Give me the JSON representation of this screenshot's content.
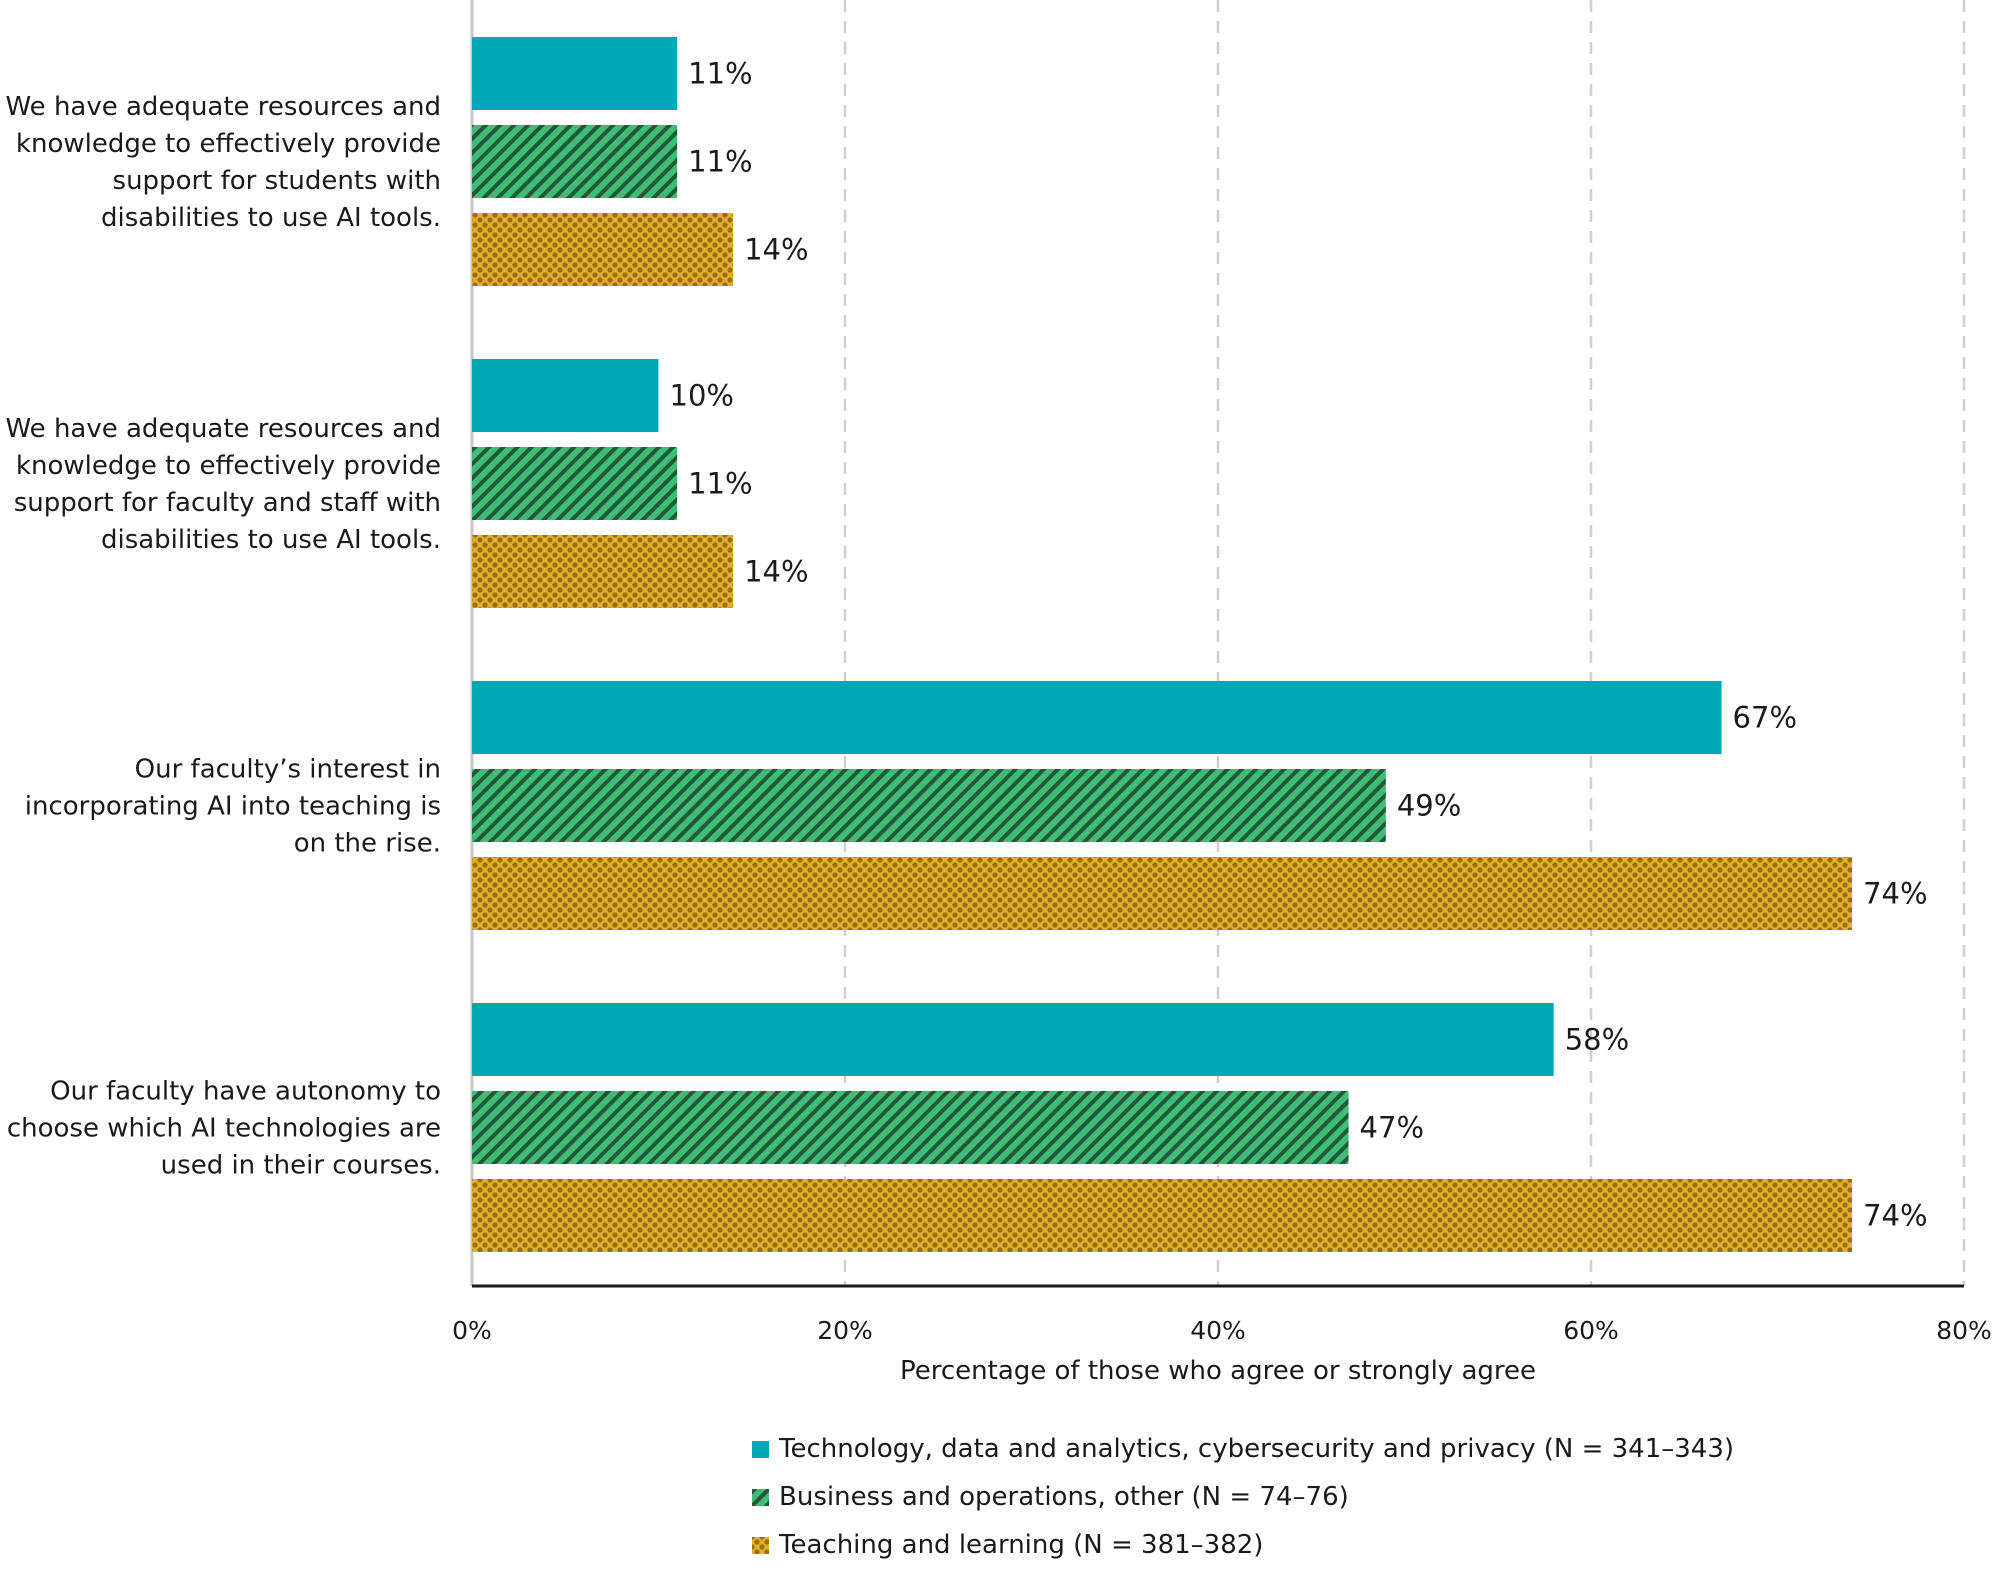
{
  "chart_data": {
    "type": "bar",
    "orientation": "horizontal",
    "categories": [
      "We have adequate resources and knowledge to effectively provide support for students with disabilities to use AI tools.",
      "We have adequate resources and knowledge to effectively provide support for faculty and staff with disabilities to use AI tools.",
      "Our faculty’s interest in incorporating AI into teaching is on the rise.",
      "Our faculty have autonomy to choose which AI technologies are used in their courses."
    ],
    "category_lines": [
      [
        "We have adequate resources and",
        "knowledge to effectively provide",
        "support for students with",
        "disabilities to use AI tools."
      ],
      [
        "We have adequate resources and",
        "knowledge to effectively provide",
        "support for faculty and staff with",
        "disabilities to use AI tools."
      ],
      [
        "Our faculty’s interest in",
        "incorporating AI into teaching is",
        "on the rise."
      ],
      [
        "Our faculty have autonomy to",
        "choose which AI technologies are",
        "used in their courses."
      ]
    ],
    "series": [
      {
        "name": "Technology, data and analytics, cybersecurity and privacy (N = 341–343)",
        "values": [
          11,
          10,
          67,
          58
        ],
        "color": "#00a7b5",
        "pattern": "solid"
      },
      {
        "name": "Business and operations, other (N = 74–76)",
        "values": [
          11,
          11,
          49,
          47
        ],
        "color": "#3fbd76",
        "pattern": "diagonal-stripes"
      },
      {
        "name": "Teaching and learning (N = 381–382)",
        "values": [
          14,
          14,
          74,
          74
        ],
        "color": "#e0b02c",
        "pattern": "dots"
      }
    ],
    "value_suffix": "%",
    "xlim": [
      0,
      80
    ],
    "xticks": [
      0,
      20,
      40,
      60,
      80
    ],
    "xtick_labels": [
      "0%",
      "20%",
      "40%",
      "60%",
      "80%"
    ],
    "xlabel": "Percentage of those who agree or strongly agree",
    "ylabel": "",
    "title": "",
    "grid": "vertical dashed",
    "legend_position": "bottom"
  }
}
